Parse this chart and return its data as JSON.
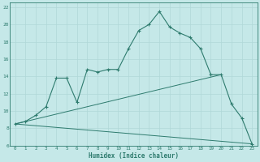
{
  "xlabel": "Humidex (Indice chaleur)",
  "bg_color": "#c5e8e8",
  "line_color": "#2e7b6e",
  "grid_color": "#b0d8d8",
  "xlim": [
    -0.5,
    23.5
  ],
  "ylim": [
    6,
    22.5
  ],
  "yticks": [
    6,
    8,
    10,
    12,
    14,
    16,
    18,
    20,
    22
  ],
  "xticks": [
    0,
    1,
    2,
    3,
    4,
    5,
    6,
    7,
    8,
    9,
    10,
    11,
    12,
    13,
    14,
    15,
    16,
    17,
    18,
    19,
    20,
    21,
    22,
    23
  ],
  "line1_x": [
    0,
    1,
    2,
    3,
    4,
    5,
    6,
    7,
    8,
    9,
    10,
    11,
    12,
    13,
    14,
    15,
    16,
    17,
    18,
    19,
    20,
    21,
    22,
    23
  ],
  "line1_y": [
    8.5,
    8.8,
    9.5,
    10.5,
    13.8,
    13.8,
    11.0,
    14.8,
    14.5,
    14.8,
    14.8,
    17.2,
    19.3,
    20.0,
    21.5,
    19.7,
    19.0,
    18.5,
    17.2,
    14.2,
    14.2,
    10.8,
    9.2,
    6.2
  ],
  "line2_x": [
    0,
    20
  ],
  "line2_y": [
    8.5,
    14.2
  ],
  "line3_x": [
    0,
    23
  ],
  "line3_y": [
    8.5,
    6.2
  ],
  "figwidth": 3.2,
  "figheight": 2.0,
  "dpi": 100
}
